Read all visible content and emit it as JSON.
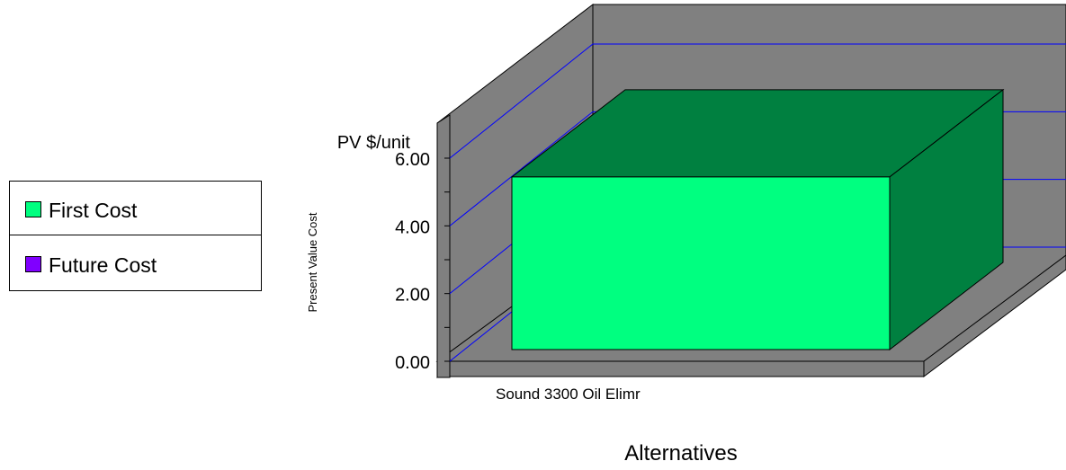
{
  "chart_data": {
    "type": "bar",
    "title": "",
    "categories": [
      "Sound 3300 Oil Elimr"
    ],
    "series": [
      {
        "name": "First Cost",
        "values": [
          5.1
        ],
        "color": "#00ff80"
      },
      {
        "name": "Future Cost",
        "values": [
          0
        ],
        "color": "#8000ff"
      }
    ],
    "xlabel": "Alternatives",
    "ylabel": "Present Value Cost",
    "unit_label": "PV $/unit",
    "ylim": [
      0,
      6
    ],
    "ticks": [
      "0.00",
      "2.00",
      "4.00",
      "6.00"
    ],
    "style": "3d",
    "grid": true,
    "legend_position": "left",
    "colors": {
      "wall": "#808080",
      "floor": "#808080",
      "gridline": "#0000ff",
      "bar_front": "#00ff80",
      "bar_top": "#008040",
      "bar_side": "#008040"
    }
  }
}
